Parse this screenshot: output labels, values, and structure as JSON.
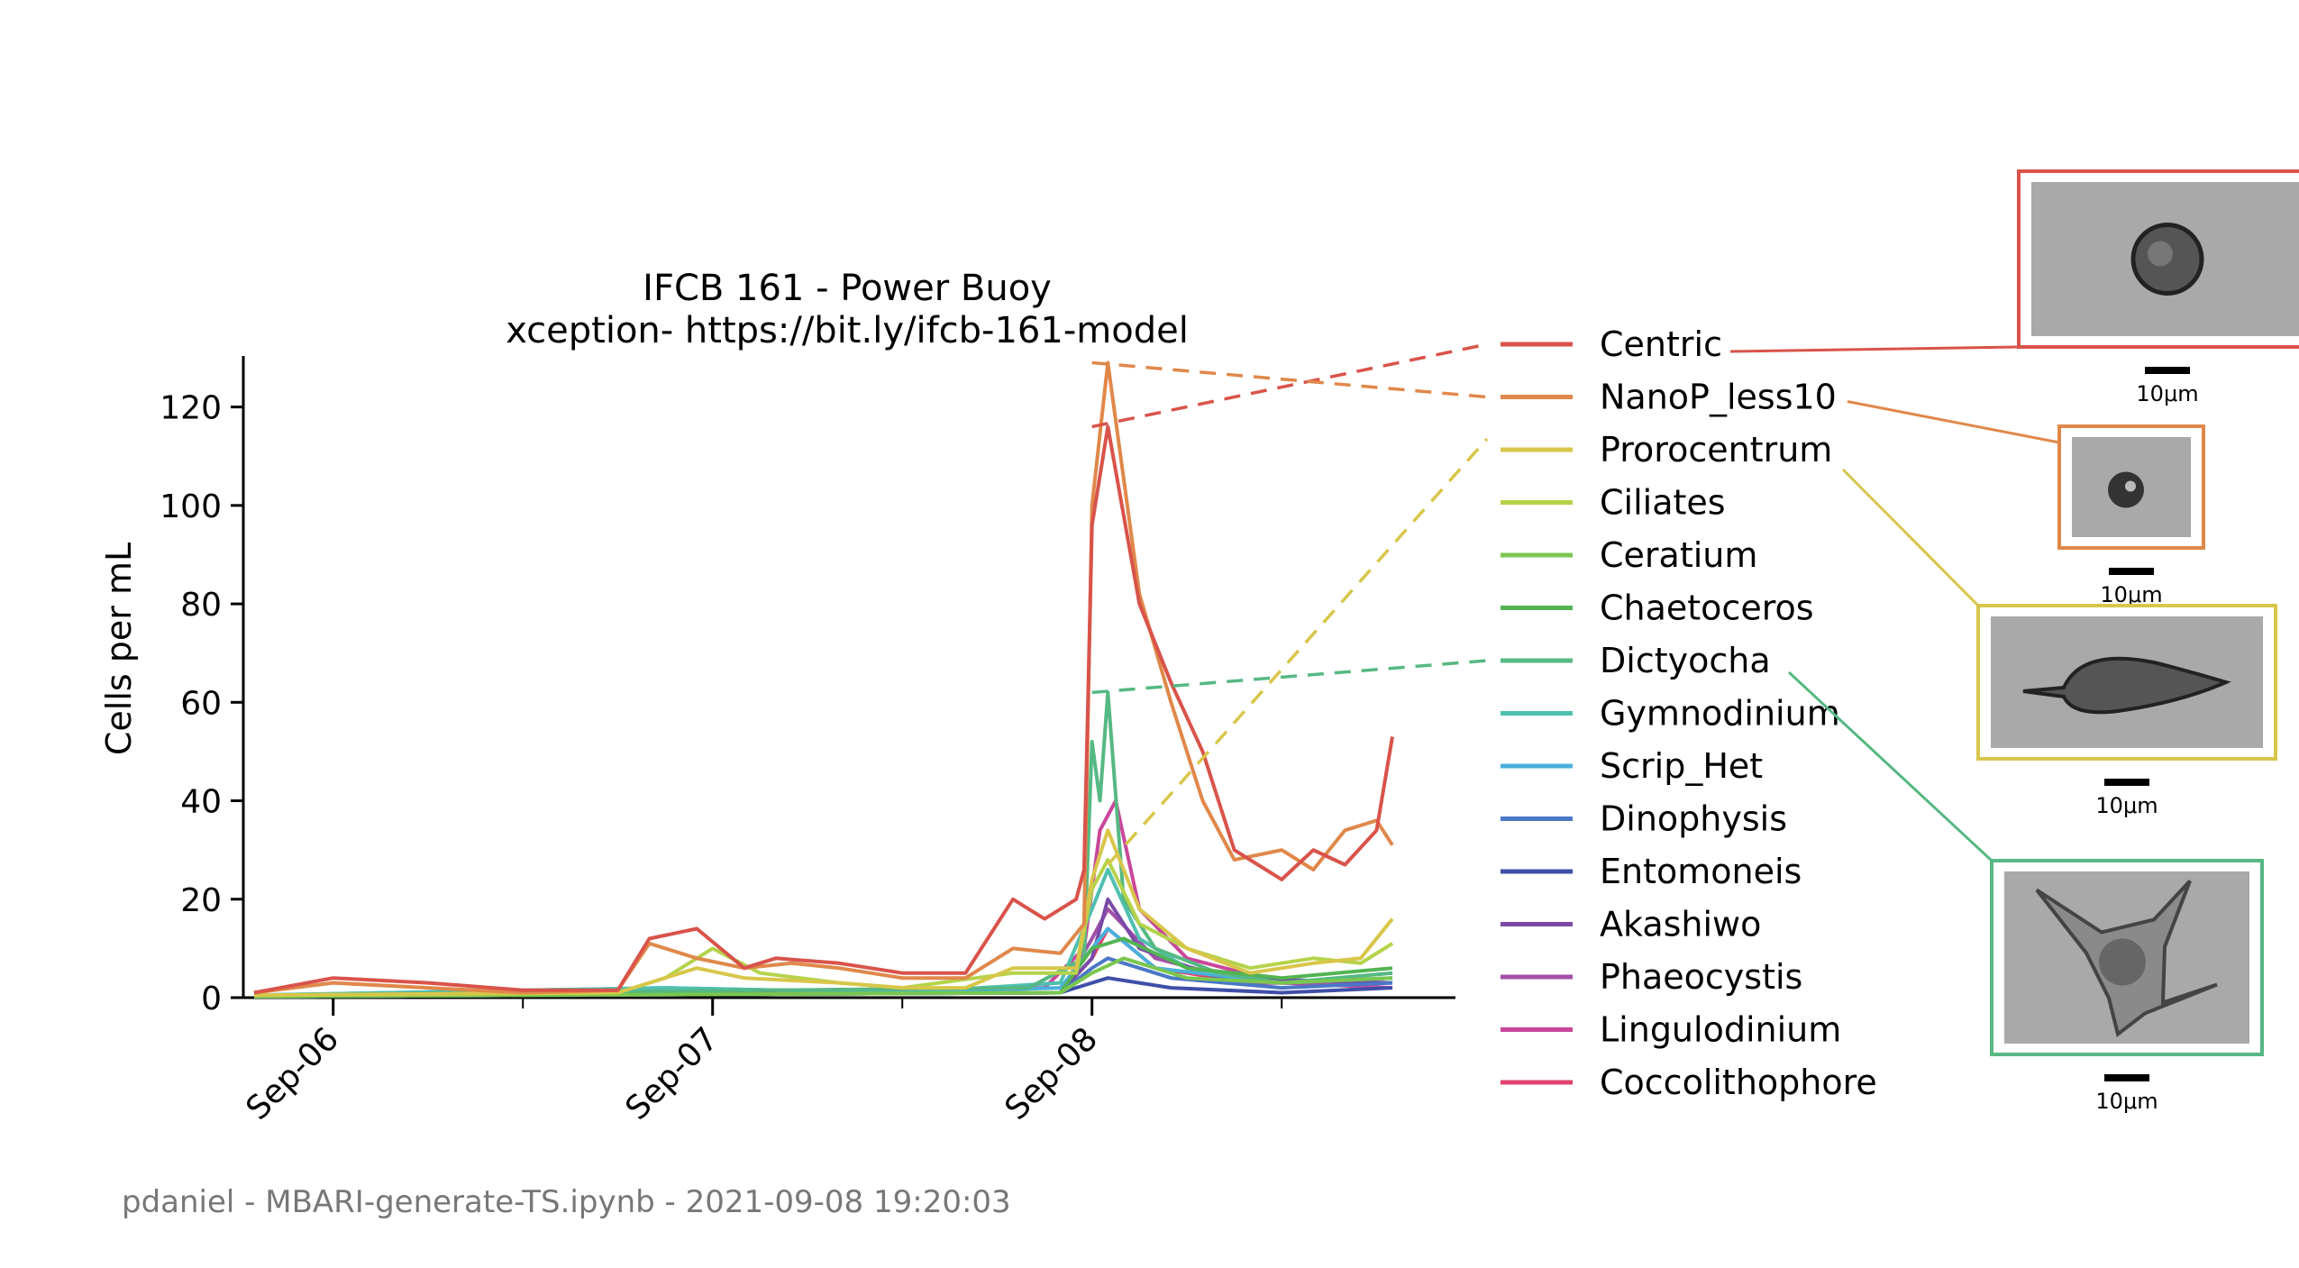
{
  "chart_data": {
    "type": "line",
    "title": "IFCB 161 - Power Buoy",
    "subtitle": "xception- https://bit.ly/ifcb-161-model",
    "xlabel": "",
    "ylabel": "Cells per mL",
    "x_range": [
      "2021-09-05 19:00",
      "2021-09-08 19:00"
    ],
    "ylim": [
      0,
      130
    ],
    "x_ticks": [
      {
        "date": "2021-09-06",
        "label": "Sep-06"
      },
      {
        "date": "2021-09-07",
        "label": "Sep-07"
      },
      {
        "date": "2021-09-08",
        "label": "Sep-08"
      }
    ],
    "x_minor_ticks": [
      "2021-09-06 12:00",
      "2021-09-07 12:00",
      "2021-09-08 12:00"
    ],
    "y_ticks": [
      0,
      20,
      40,
      60,
      80,
      100,
      120
    ],
    "grid": false,
    "legend_position": "right",
    "series": [
      {
        "name": "Centric",
        "color": "#d9534a",
        "points": [
          [
            "2021-09-05 19:00",
            1
          ],
          [
            "2021-09-06 00:00",
            4
          ],
          [
            "2021-09-06 06:00",
            3
          ],
          [
            "2021-09-06 12:00",
            1.5
          ],
          [
            "2021-09-06 18:00",
            1.5
          ],
          [
            "2021-09-06 20:00",
            12
          ],
          [
            "2021-09-06 23:00",
            14
          ],
          [
            "2021-09-07 02:00",
            6
          ],
          [
            "2021-09-07 04:00",
            8
          ],
          [
            "2021-09-07 08:00",
            7
          ],
          [
            "2021-09-07 12:00",
            5
          ],
          [
            "2021-09-07 16:00",
            5
          ],
          [
            "2021-09-07 19:00",
            20
          ],
          [
            "2021-09-07 21:00",
            16
          ],
          [
            "2021-09-07 23:00",
            20
          ],
          [
            "2021-09-07 23:30",
            26
          ],
          [
            "2021-09-08 00:00",
            96
          ],
          [
            "2021-09-08 01:00",
            116
          ],
          [
            "2021-09-08 03:00",
            80
          ],
          [
            "2021-09-08 05:00",
            64
          ],
          [
            "2021-09-08 07:00",
            50
          ],
          [
            "2021-09-08 09:00",
            30
          ],
          [
            "2021-09-08 12:00",
            24
          ],
          [
            "2021-09-08 14:00",
            30
          ],
          [
            "2021-09-08 16:00",
            27
          ],
          [
            "2021-09-08 18:00",
            34
          ],
          [
            "2021-09-08 19:00",
            53
          ]
        ]
      },
      {
        "name": "NanoP_less10",
        "color": "#e0884a",
        "points": [
          [
            "2021-09-05 19:00",
            1
          ],
          [
            "2021-09-06 00:00",
            3
          ],
          [
            "2021-09-06 06:00",
            2
          ],
          [
            "2021-09-06 12:00",
            1
          ],
          [
            "2021-09-06 18:00",
            1.5
          ],
          [
            "2021-09-06 20:00",
            11
          ],
          [
            "2021-09-06 23:00",
            8
          ],
          [
            "2021-09-07 02:00",
            6
          ],
          [
            "2021-09-07 05:00",
            7
          ],
          [
            "2021-09-07 08:00",
            6
          ],
          [
            "2021-09-07 12:00",
            4
          ],
          [
            "2021-09-07 16:00",
            4
          ],
          [
            "2021-09-07 19:00",
            10
          ],
          [
            "2021-09-07 22:00",
            9
          ],
          [
            "2021-09-07 23:30",
            15
          ],
          [
            "2021-09-08 00:00",
            100
          ],
          [
            "2021-09-08 01:00",
            129
          ],
          [
            "2021-09-08 03:00",
            82
          ],
          [
            "2021-09-08 05:00",
            60
          ],
          [
            "2021-09-08 07:00",
            40
          ],
          [
            "2021-09-08 09:00",
            28
          ],
          [
            "2021-09-08 12:00",
            30
          ],
          [
            "2021-09-08 14:00",
            26
          ],
          [
            "2021-09-08 16:00",
            34
          ],
          [
            "2021-09-08 18:00",
            36
          ],
          [
            "2021-09-08 19:00",
            31
          ]
        ]
      },
      {
        "name": "Prorocentrum",
        "color": "#d8c64a",
        "points": [
          [
            "2021-09-05 19:00",
            0.5
          ],
          [
            "2021-09-06 18:00",
            1
          ],
          [
            "2021-09-06 20:00",
            3
          ],
          [
            "2021-09-06 23:00",
            6
          ],
          [
            "2021-09-07 02:00",
            4
          ],
          [
            "2021-09-07 08:00",
            3
          ],
          [
            "2021-09-07 12:00",
            2
          ],
          [
            "2021-09-07 16:00",
            2
          ],
          [
            "2021-09-07 19:00",
            6
          ],
          [
            "2021-09-07 23:00",
            6
          ],
          [
            "2021-09-08 00:00",
            24
          ],
          [
            "2021-09-08 01:00",
            34
          ],
          [
            "2021-09-08 03:00",
            18
          ],
          [
            "2021-09-08 06:00",
            10
          ],
          [
            "2021-09-08 10:00",
            5
          ],
          [
            "2021-09-08 14:00",
            7
          ],
          [
            "2021-09-08 17:00",
            8
          ],
          [
            "2021-09-08 19:00",
            16
          ]
        ]
      },
      {
        "name": "Ciliates",
        "color": "#b5d34a",
        "points": [
          [
            "2021-09-05 19:00",
            0.5
          ],
          [
            "2021-09-06 18:00",
            1
          ],
          [
            "2021-09-06 21:00",
            4
          ],
          [
            "2021-09-07 00:00",
            10
          ],
          [
            "2021-09-07 03:00",
            5
          ],
          [
            "2021-09-07 08:00",
            3
          ],
          [
            "2021-09-07 12:00",
            2
          ],
          [
            "2021-09-07 19:00",
            5
          ],
          [
            "2021-09-07 23:00",
            5
          ],
          [
            "2021-09-08 00:00",
            22
          ],
          [
            "2021-09-08 01:00",
            28
          ],
          [
            "2021-09-08 03:00",
            15
          ],
          [
            "2021-09-08 06:00",
            10
          ],
          [
            "2021-09-08 10:00",
            6
          ],
          [
            "2021-09-08 14:00",
            8
          ],
          [
            "2021-09-08 17:00",
            7
          ],
          [
            "2021-09-08 19:00",
            11
          ]
        ]
      },
      {
        "name": "Ceratium",
        "color": "#7ac74f",
        "points": [
          [
            "2021-09-05 19:00",
            0.2
          ],
          [
            "2021-09-07 22:00",
            1
          ],
          [
            "2021-09-08 00:00",
            5
          ],
          [
            "2021-09-08 02:00",
            8
          ],
          [
            "2021-09-08 06:00",
            4
          ],
          [
            "2021-09-08 12:00",
            3
          ],
          [
            "2021-09-08 19:00",
            4
          ]
        ]
      },
      {
        "name": "Chaetoceros",
        "color": "#52b452",
        "points": [
          [
            "2021-09-05 19:00",
            0.2
          ],
          [
            "2021-09-07 22:00",
            1
          ],
          [
            "2021-09-08 00:00",
            10
          ],
          [
            "2021-09-08 02:00",
            12
          ],
          [
            "2021-09-08 06:00",
            6
          ],
          [
            "2021-09-08 12:00",
            4
          ],
          [
            "2021-09-08 19:00",
            6
          ]
        ]
      },
      {
        "name": "Dictyocha",
        "color": "#56b883",
        "points": [
          [
            "2021-09-05 19:00",
            0.5
          ],
          [
            "2021-09-07 20:00",
            2
          ],
          [
            "2021-09-07 23:30",
            8
          ],
          [
            "2021-09-08 00:00",
            52
          ],
          [
            "2021-09-08 00:30",
            40
          ],
          [
            "2021-09-08 01:00",
            62
          ],
          [
            "2021-09-08 02:00",
            20
          ],
          [
            "2021-09-08 04:00",
            10
          ],
          [
            "2021-09-08 08:00",
            5
          ],
          [
            "2021-09-08 12:00",
            3
          ],
          [
            "2021-09-08 19:00",
            5
          ]
        ]
      },
      {
        "name": "Gymnodinium",
        "color": "#4fc0b0",
        "points": [
          [
            "2021-09-05 19:00",
            0.5
          ],
          [
            "2021-09-06 21:00",
            2
          ],
          [
            "2021-09-07 12:00",
            1
          ],
          [
            "2021-09-07 22:00",
            3
          ],
          [
            "2021-09-08 00:00",
            18
          ],
          [
            "2021-09-08 01:00",
            26
          ],
          [
            "2021-09-08 03:00",
            12
          ],
          [
            "2021-09-08 06:00",
            6
          ],
          [
            "2021-09-08 12:00",
            3
          ],
          [
            "2021-09-08 19:00",
            4
          ]
        ]
      },
      {
        "name": "Scrip_Het",
        "color": "#4ab0dc",
        "points": [
          [
            "2021-09-05 19:00",
            0.5
          ],
          [
            "2021-09-06 21:00",
            2
          ],
          [
            "2021-09-07 12:00",
            1
          ],
          [
            "2021-09-07 22:00",
            2
          ],
          [
            "2021-09-08 00:00",
            10
          ],
          [
            "2021-09-08 01:00",
            14
          ],
          [
            "2021-09-08 04:00",
            6
          ],
          [
            "2021-09-08 12:00",
            3
          ],
          [
            "2021-09-08 19:00",
            4
          ]
        ]
      },
      {
        "name": "Dinophysis",
        "color": "#4a78c6",
        "points": [
          [
            "2021-09-05 19:00",
            0.2
          ],
          [
            "2021-09-07 22:00",
            1
          ],
          [
            "2021-09-08 00:00",
            6
          ],
          [
            "2021-09-08 01:00",
            8
          ],
          [
            "2021-09-08 05:00",
            4
          ],
          [
            "2021-09-08 12:00",
            2
          ],
          [
            "2021-09-08 19:00",
            3
          ]
        ]
      },
      {
        "name": "Entomoneis",
        "color": "#3f4fa8",
        "points": [
          [
            "2021-09-05 19:00",
            0.2
          ],
          [
            "2021-09-07 22:00",
            1
          ],
          [
            "2021-09-08 00:00",
            3
          ],
          [
            "2021-09-08 01:00",
            4
          ],
          [
            "2021-09-08 05:00",
            2
          ],
          [
            "2021-09-08 12:00",
            1
          ],
          [
            "2021-09-08 19:00",
            2
          ]
        ]
      },
      {
        "name": "Akashiwo",
        "color": "#7a4aa6",
        "points": [
          [
            "2021-09-05 19:00",
            0.2
          ],
          [
            "2021-09-07 22:00",
            1
          ],
          [
            "2021-09-08 00:00",
            8
          ],
          [
            "2021-09-08 01:00",
            20
          ],
          [
            "2021-09-08 03:00",
            10
          ],
          [
            "2021-09-08 08:00",
            4
          ],
          [
            "2021-09-08 19:00",
            3
          ]
        ]
      },
      {
        "name": "Phaeocystis",
        "color": "#a44fa8",
        "points": [
          [
            "2021-09-05 19:00",
            0.2
          ],
          [
            "2021-09-07 22:00",
            1
          ],
          [
            "2021-09-08 00:00",
            12
          ],
          [
            "2021-09-08 01:00",
            18
          ],
          [
            "2021-09-08 04:00",
            8
          ],
          [
            "2021-09-08 10:00",
            3
          ],
          [
            "2021-09-08 19:00",
            3
          ]
        ]
      },
      {
        "name": "Lingulodinium",
        "color": "#c9479a",
        "points": [
          [
            "2021-09-05 19:00",
            0.5
          ],
          [
            "2021-09-07 21:00",
            2
          ],
          [
            "2021-09-07 23:30",
            10
          ],
          [
            "2021-09-08 00:30",
            34
          ],
          [
            "2021-09-08 01:30",
            40
          ],
          [
            "2021-09-08 03:00",
            18
          ],
          [
            "2021-09-08 06:00",
            8
          ],
          [
            "2021-09-08 12:00",
            3
          ],
          [
            "2021-09-08 19:00",
            2
          ]
        ]
      },
      {
        "name": "Coccolithophore",
        "color": "#e0436e",
        "points": [
          [
            "2021-09-05 19:00",
            0.5
          ],
          [
            "2021-09-07 22:00",
            1
          ],
          [
            "2021-09-08 00:00",
            8
          ],
          [
            "2021-09-08 01:00",
            14
          ],
          [
            "2021-09-08 04:00",
            6
          ],
          [
            "2021-09-08 10:00",
            3
          ],
          [
            "2021-09-08 19:00",
            3
          ]
        ]
      }
    ],
    "connectors": [
      {
        "series": "Centric",
        "style": "dashed",
        "from_point": [
          "2021-09-08 00:00",
          116
        ]
      },
      {
        "series": "NanoP_less10",
        "style": "dashed",
        "from_point": [
          "2021-09-08 00:00",
          129
        ]
      },
      {
        "series": "Prorocentrum",
        "style": "dashed",
        "from_point": [
          "2021-09-08 01:00",
          27
        ]
      },
      {
        "series": "Dictyocha",
        "style": "dashed",
        "from_point": [
          "2021-09-08 00:00",
          62
        ]
      }
    ]
  },
  "image_panels": [
    {
      "series": "Centric",
      "color": "#d9534a",
      "scale_label": "10μm",
      "shape": "round-cell"
    },
    {
      "series": "NanoP_less10",
      "color": "#e0884a",
      "scale_label": "10μm",
      "shape": "small-cell"
    },
    {
      "series": "Prorocentrum",
      "color": "#d8c64a",
      "scale_label": "10μm",
      "shape": "elongated-cell"
    },
    {
      "series": "Dictyocha",
      "color": "#56b883",
      "scale_label": "10μm",
      "shape": "star-cell"
    }
  ],
  "footer": "pdaniel - MBARI-generate-TS.ipynb - 2021-09-08 19:20:03"
}
